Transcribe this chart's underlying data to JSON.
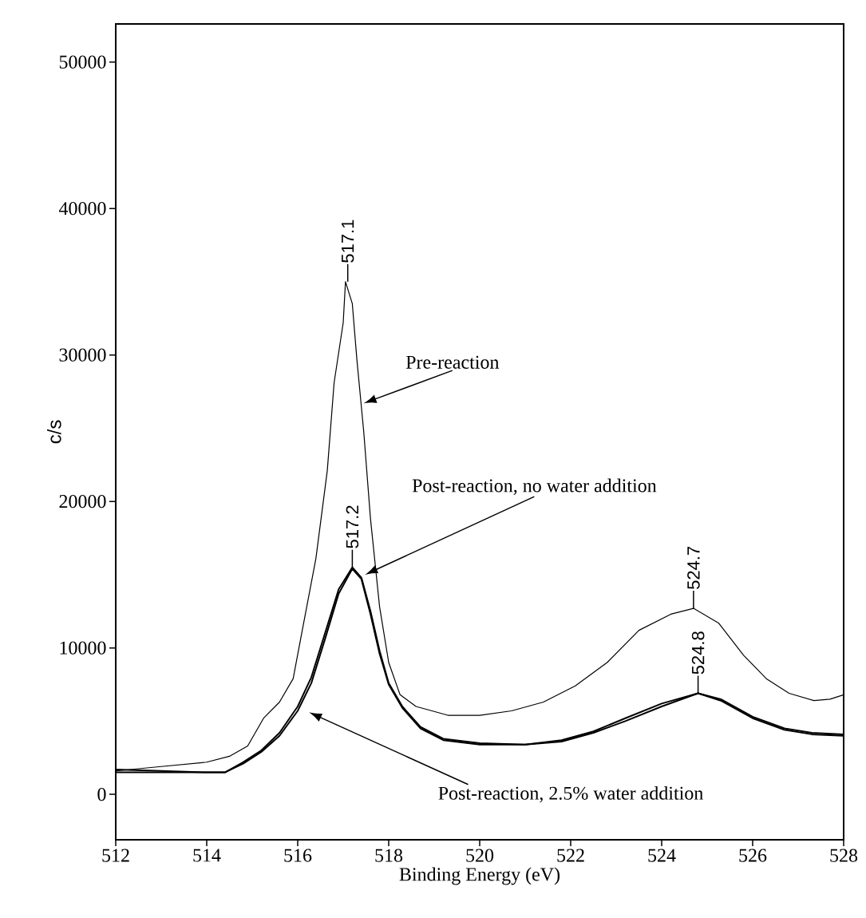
{
  "chart_data": {
    "type": "line",
    "xlabel": "Binding Energy (eV)",
    "ylabel": "c/s",
    "xlim": [
      512,
      528
    ],
    "ylim": [
      -3100,
      52600
    ],
    "xticks": [
      512,
      514,
      516,
      518,
      520,
      522,
      524,
      526,
      528
    ],
    "yticks": [
      0,
      10000,
      20000,
      30000,
      40000,
      50000
    ],
    "grid": false,
    "legend": false,
    "marker": "none",
    "line_style": "solid",
    "series": [
      {
        "name": "Pre-reaction",
        "color": "#000000",
        "x": [
          512,
          513,
          514,
          514.5,
          514.9,
          515.25,
          515.6,
          515.9,
          516.1,
          516.4,
          516.65,
          516.8,
          517.0,
          517.05,
          517.2,
          517.3,
          517.45,
          517.6,
          517.8,
          518.0,
          518.25,
          518.6,
          519.3,
          520.0,
          520.7,
          521.4,
          522.1,
          522.8,
          523.5,
          524.2,
          524.7,
          525.25,
          525.8,
          526.3,
          526.8,
          527.35,
          527.7,
          528
        ],
        "values": [
          1600,
          1900,
          2200,
          2600,
          3300,
          5200,
          6300,
          7900,
          11200,
          16100,
          22100,
          28100,
          32200,
          35000,
          33500,
          29700,
          24800,
          18800,
          12800,
          9000,
          6800,
          6000,
          5400,
          5400,
          5700,
          6300,
          7400,
          9000,
          11200,
          12300,
          12700,
          11700,
          9500,
          7900,
          6900,
          6400,
          6500,
          6800
        ]
      },
      {
        "name": "Post-reaction, no water addition",
        "color": "#000000",
        "x": [
          512,
          513,
          514,
          514.4,
          514.8,
          515.2,
          515.6,
          516.0,
          516.3,
          516.6,
          516.9,
          517.2,
          517.4,
          517.6,
          517.8,
          518.0,
          518.3,
          518.7,
          519.2,
          520,
          521,
          521.8,
          522.5,
          523.2,
          524,
          524.8,
          525.3,
          526,
          526.7,
          527.3,
          528
        ],
        "values": [
          1500,
          1500,
          1500,
          1500,
          2200,
          3000,
          4200,
          6000,
          8000,
          11000,
          14000,
          15500,
          14800,
          12500,
          9800,
          7600,
          6000,
          4600,
          3800,
          3500,
          3400,
          3600,
          4200,
          5000,
          6000,
          6900,
          6500,
          5300,
          4500,
          4200,
          4100
        ]
      },
      {
        "name": "Post-reaction, 2.5% water addition",
        "color": "#000000",
        "x": [
          512,
          513,
          514,
          514.4,
          514.8,
          515.2,
          515.6,
          516.0,
          516.3,
          516.6,
          516.9,
          517.2,
          517.4,
          517.6,
          517.8,
          518.0,
          518.3,
          518.7,
          519.2,
          520,
          521,
          521.8,
          522.5,
          523.2,
          524,
          524.8,
          525.3,
          526,
          526.7,
          527.3,
          528
        ],
        "values": [
          1700,
          1600,
          1500,
          1500,
          2100,
          2900,
          4000,
          5700,
          7600,
          10600,
          13700,
          15400,
          14700,
          12300,
          9600,
          7500,
          5900,
          4500,
          3700,
          3400,
          3400,
          3700,
          4300,
          5200,
          6200,
          6900,
          6400,
          5200,
          4400,
          4100,
          4000
        ]
      }
    ],
    "annotations": [
      {
        "text": "517.1",
        "x": 517.1,
        "y": 35000
      },
      {
        "text": "517.2",
        "x": 517.2,
        "y": 15500
      },
      {
        "text": "524.7",
        "x": 524.7,
        "y": 12700
      },
      {
        "text": "524.8",
        "x": 524.8,
        "y": 6900
      }
    ]
  }
}
